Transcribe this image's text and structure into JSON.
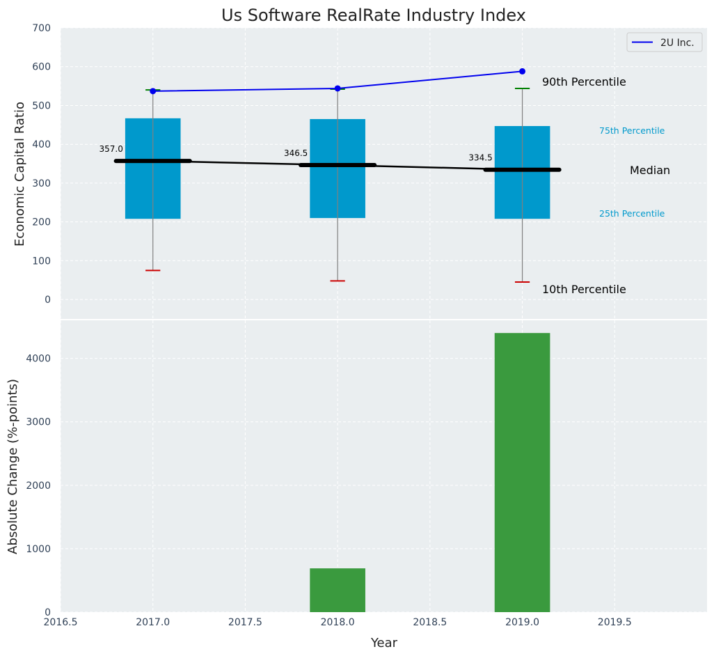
{
  "chart_data": [
    {
      "type": "box",
      "title": "Us Software RealRate Industry Index",
      "ylabel": "Economic Capital Ratio",
      "ylim": [
        -50,
        700
      ],
      "yticks": [
        0,
        100,
        200,
        300,
        400,
        500,
        600,
        700
      ],
      "grid": true,
      "legend": {
        "position": "top-right",
        "entries": [
          "2U Inc."
        ]
      },
      "categories": [
        2017,
        2018,
        2019
      ],
      "percentiles": {
        "p10": [
          75,
          48,
          45
        ],
        "p25": [
          208,
          210,
          208
        ],
        "median": [
          357.0,
          346.5,
          334.5
        ],
        "p75": [
          467,
          465,
          447
        ],
        "p90": [
          540,
          542,
          544
        ]
      },
      "median_labels": [
        "357.0",
        "346.5",
        "334.5"
      ],
      "series": [
        {
          "name": "2U Inc.",
          "color": "#0000ee",
          "x": [
            2017,
            2018,
            2019
          ],
          "y": [
            537,
            544,
            588
          ]
        }
      ],
      "annotations": {
        "p90": "90th Percentile",
        "p75": "75th Percentile",
        "median": "Median",
        "p25": "25th Percentile",
        "p10": "10th Percentile"
      },
      "colors": {
        "box": "#0099cc",
        "median": "#000000",
        "p90_cap": "#008000",
        "p10_cap": "#cc0000",
        "background": "#eaeef0"
      }
    },
    {
      "type": "bar",
      "xlabel": "Year",
      "ylabel": "Absolute Change (%-points)",
      "xlim": [
        2016.5,
        2020.0
      ],
      "xticks": [
        "2016.5",
        "2017.0",
        "2017.5",
        "2018.0",
        "2018.5",
        "2019.0",
        "2019.5"
      ],
      "ylim": [
        0,
        4600
      ],
      "yticks": [
        0,
        1000,
        2000,
        3000,
        4000
      ],
      "grid": true,
      "x": [
        2018,
        2019
      ],
      "values": [
        690,
        4400
      ],
      "color": "#3a9a3e"
    }
  ]
}
